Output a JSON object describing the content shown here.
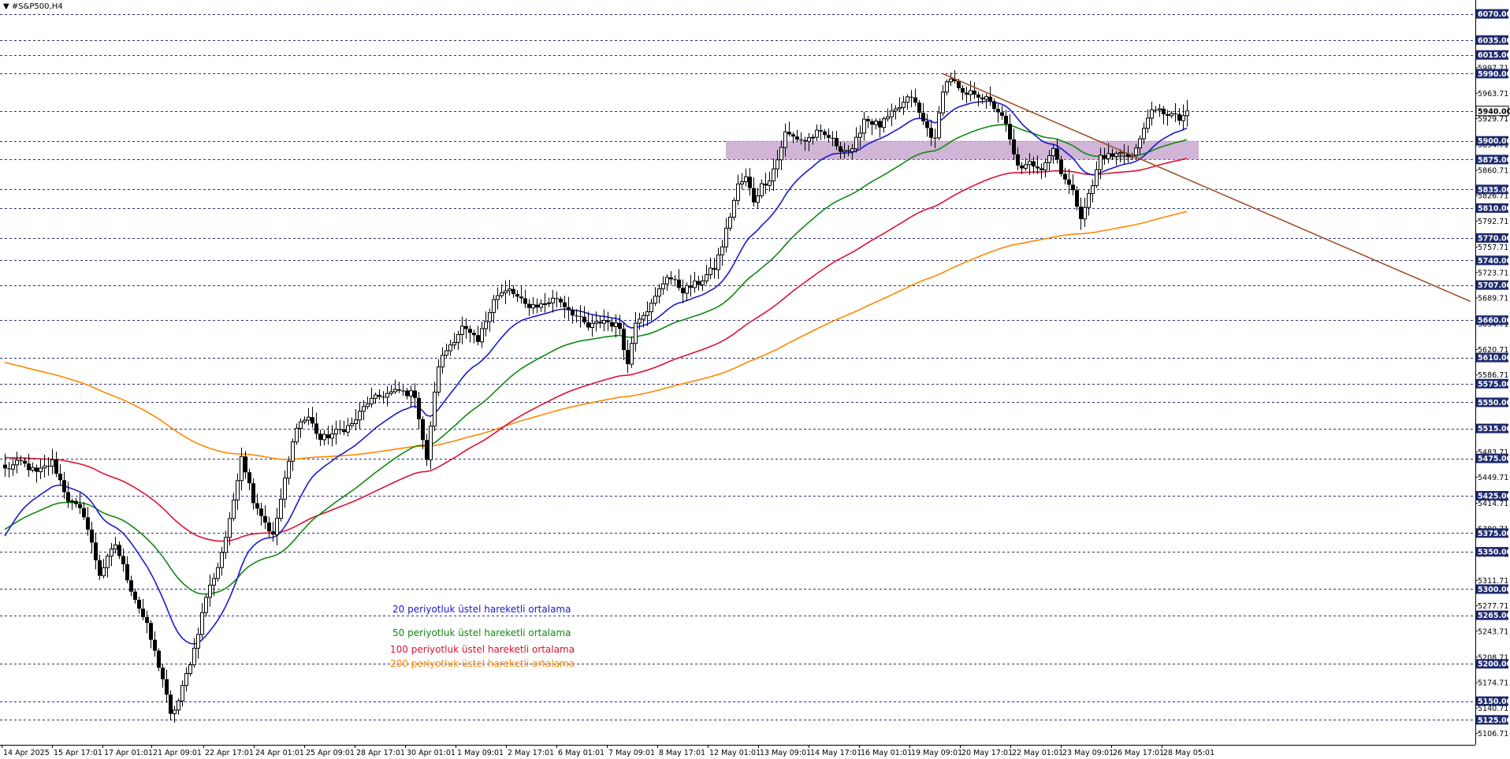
{
  "header": {
    "symbol_label": "▼ #S&P500,H4"
  },
  "legend": [
    {
      "text": "20 periyotluk üstel hareketli ortalama",
      "color": "#1a1acc"
    },
    {
      "text": "50 periyotluk üstel hareketli ortalama",
      "color": "#118811"
    },
    {
      "text": "100 periyotluk üstel hareketli ortalama",
      "color": "#dd1133"
    },
    {
      "text": "200 periyotluk üstel hareketli ortalama",
      "color": "#ff8800"
    }
  ],
  "chart_data": {
    "type": "candlestick",
    "ylim": [
      5100,
      6075
    ],
    "level_lines": [
      6070,
      6035,
      6015,
      5990,
      5940,
      5900,
      5875,
      5835,
      5810,
      5770,
      5740,
      5707,
      5660,
      5610,
      5575,
      5550,
      5515,
      5475,
      5425,
      5375,
      5350,
      5300,
      5265,
      5200,
      5150,
      5125
    ],
    "level_labels": [
      "6070.00",
      "6035.00",
      "6015.00",
      "5990.00",
      "5940.00",
      "5900.00",
      "5875.00",
      "5835.00",
      "5810.00",
      "5770.00",
      "5740.00",
      "5707.00",
      "5660.00",
      "5610.00",
      "5575.00",
      "5550.00",
      "5515.00",
      "5475.00",
      "5425.00",
      "5375.00",
      "5350.00",
      "5300.00",
      "5265.00",
      "5200.00",
      "5150.00",
      "5125.00"
    ],
    "scale_ticks": [
      "5997.71",
      "5963.71",
      "5929.71",
      "5894.71",
      "5860.71",
      "5826.71",
      "5792.71",
      "5757.71",
      "5723.71",
      "5689.71",
      "5654.71",
      "5620.71",
      "5586.71",
      "5551.71",
      "5517.71",
      "5483.71",
      "5449.71",
      "5414.71",
      "5380.71",
      "5346.71",
      "5311.71",
      "5277.71",
      "5243.71",
      "5208.71",
      "5174.71",
      "5140.71",
      "5106.71"
    ],
    "x_ticks": [
      "14 Apr 2025",
      "15 Apr 17:01",
      "17 Apr 01:01",
      "21 Apr 09:01",
      "22 Apr 17:01",
      "24 Apr 01:01",
      "25 Apr 09:01",
      "28 Apr 17:01",
      "30 Apr 01:01",
      "1 May 09:01",
      "2 May 17:01",
      "6 May 01:01",
      "7 May 09:01",
      "8 May 17:01",
      "12 May 01:01",
      "13 May 09:01",
      "14 May 17:01",
      "16 May 01:01",
      "19 May 09:01",
      "20 May 17:01",
      "22 May 01:01",
      "23 May 09:01",
      "26 May 17:01",
      "28 May 05:01"
    ],
    "current_price": 5940,
    "zone": {
      "from": 5875,
      "to": 5900,
      "bar_start": 183,
      "bar_end": 303,
      "color": "#c8a8d0"
    },
    "trendline": {
      "color": "#a0522d",
      "start": {
        "bar": 238,
        "price": 5990
      },
      "end": {
        "bar": 372,
        "price": 5685
      }
    },
    "ema_colors": {
      "ema20": "#1a1acc",
      "ema50": "#118811",
      "ema100": "#dd1133",
      "ema200": "#ff8800"
    },
    "ema200_anchor": 5605,
    "anchors": [
      [
        0,
        5460
      ],
      [
        4,
        5470
      ],
      [
        8,
        5455
      ],
      [
        12,
        5470
      ],
      [
        16,
        5420
      ],
      [
        20,
        5400
      ],
      [
        24,
        5320
      ],
      [
        28,
        5360
      ],
      [
        32,
        5300
      ],
      [
        36,
        5250
      ],
      [
        40,
        5180
      ],
      [
        42,
        5130
      ],
      [
        44,
        5150
      ],
      [
        48,
        5220
      ],
      [
        51,
        5290
      ],
      [
        54,
        5330
      ],
      [
        57,
        5390
      ],
      [
        60,
        5480
      ],
      [
        63,
        5420
      ],
      [
        66,
        5390
      ],
      [
        68,
        5370
      ],
      [
        70,
        5420
      ],
      [
        72,
        5470
      ],
      [
        74,
        5520
      ],
      [
        77,
        5530
      ],
      [
        80,
        5500
      ],
      [
        84,
        5510
      ],
      [
        88,
        5520
      ],
      [
        92,
        5550
      ],
      [
        96,
        5560
      ],
      [
        100,
        5565
      ],
      [
        104,
        5560
      ],
      [
        107,
        5470
      ],
      [
        108,
        5520
      ],
      [
        110,
        5600
      ],
      [
        112,
        5620
      ],
      [
        116,
        5650
      ],
      [
        120,
        5630
      ],
      [
        124,
        5690
      ],
      [
        128,
        5700
      ],
      [
        132,
        5680
      ],
      [
        136,
        5680
      ],
      [
        140,
        5690
      ],
      [
        144,
        5670
      ],
      [
        148,
        5650
      ],
      [
        152,
        5660
      ],
      [
        156,
        5650
      ],
      [
        158,
        5600
      ],
      [
        160,
        5660
      ],
      [
        164,
        5680
      ],
      [
        168,
        5720
      ],
      [
        172,
        5700
      ],
      [
        176,
        5710
      ],
      [
        180,
        5730
      ],
      [
        182,
        5760
      ],
      [
        184,
        5800
      ],
      [
        186,
        5840
      ],
      [
        188,
        5850
      ],
      [
        190,
        5820
      ],
      [
        192,
        5840
      ],
      [
        194,
        5850
      ],
      [
        196,
        5875
      ],
      [
        198,
        5910
      ],
      [
        200,
        5905
      ],
      [
        203,
        5900
      ],
      [
        206,
        5910
      ],
      [
        209,
        5905
      ],
      [
        212,
        5890
      ],
      [
        215,
        5885
      ],
      [
        218,
        5930
      ],
      [
        222,
        5920
      ],
      [
        226,
        5940
      ],
      [
        230,
        5960
      ],
      [
        233,
        5925
      ],
      [
        236,
        5900
      ],
      [
        238,
        5970
      ],
      [
        240,
        5985
      ],
      [
        243,
        5960
      ],
      [
        246,
        5965
      ],
      [
        249,
        5955
      ],
      [
        252,
        5940
      ],
      [
        254,
        5920
      ],
      [
        256,
        5880
      ],
      [
        258,
        5860
      ],
      [
        260,
        5870
      ],
      [
        263,
        5865
      ],
      [
        266,
        5890
      ],
      [
        268,
        5860
      ],
      [
        271,
        5830
      ],
      [
        273,
        5800
      ],
      [
        276,
        5840
      ],
      [
        278,
        5880
      ],
      [
        281,
        5880
      ],
      [
        284,
        5885
      ],
      [
        286,
        5880
      ],
      [
        288,
        5900
      ],
      [
        290,
        5935
      ],
      [
        293,
        5940
      ],
      [
        296,
        5935
      ],
      [
        298,
        5928
      ],
      [
        300,
        5940
      ]
    ]
  }
}
